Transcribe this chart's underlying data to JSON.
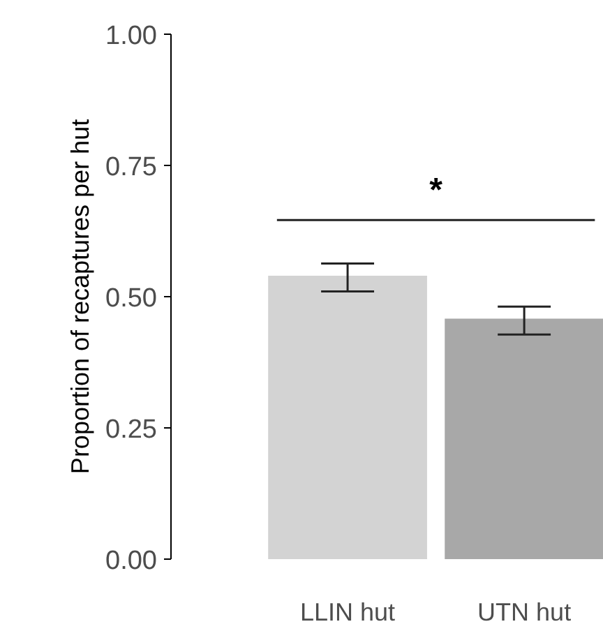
{
  "chart_data": {
    "type": "bar",
    "ylabel": "Proportion of recaptures per hut",
    "categories": [
      "LLIN hut",
      "UTN hut"
    ],
    "values": [
      0.54,
      0.458
    ],
    "colors": [
      "#d3d3d3",
      "#a8a8a8"
    ],
    "errors": [
      [
        0.51,
        0.563
      ],
      [
        0.428,
        0.481
      ]
    ],
    "ylim": [
      0,
      1
    ],
    "yticks": [
      {
        "value": 0,
        "label": "0.00"
      },
      {
        "value": 0.25,
        "label": "0.25"
      },
      {
        "value": 0.5,
        "label": "0.50"
      },
      {
        "value": 0.75,
        "label": "0.75"
      },
      {
        "value": 1,
        "label": "1.00"
      }
    ],
    "annotations": [
      "*"
    ],
    "ref_lines": [
      {
        "axis": "y",
        "value": 0.646,
        "color": "#222222"
      }
    ],
    "grid": false
  }
}
